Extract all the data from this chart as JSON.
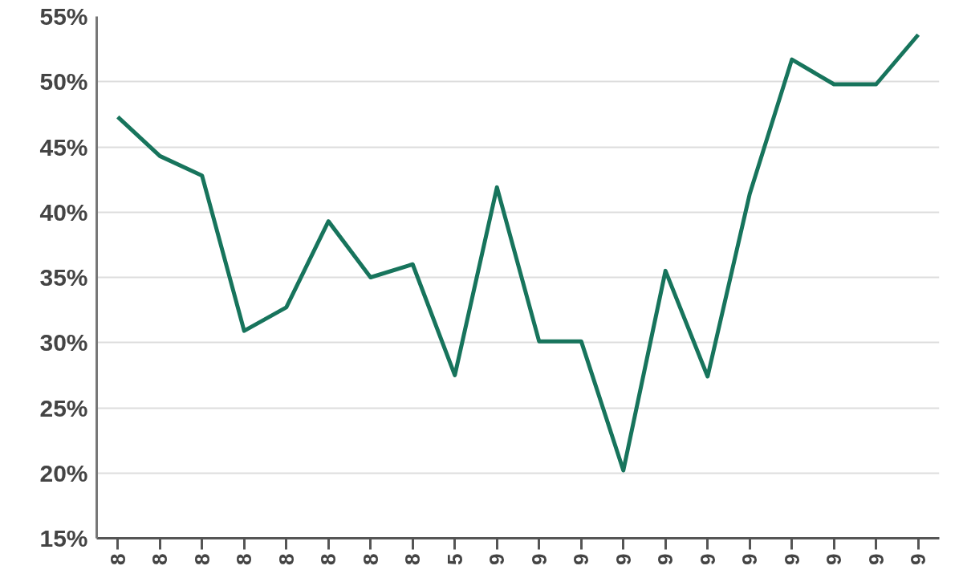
{
  "chart_data": {
    "type": "line",
    "categories": [
      "8",
      "8",
      "8",
      "8",
      "8",
      "8",
      "8",
      "8",
      "5",
      "9",
      "9",
      "9",
      "9",
      "9",
      "9",
      "9",
      "9",
      "9",
      "9",
      "9"
    ],
    "series": [
      {
        "color": "#17745c",
        "values": [
          47.3,
          44.3,
          42.8,
          30.9,
          32.7,
          39.3,
          35.0,
          36.0,
          27.5,
          41.9,
          30.1,
          30.1,
          20.2,
          35.5,
          27.4,
          41.4,
          51.7,
          49.8,
          49.8,
          53.6
        ]
      }
    ],
    "ylim": [
      15,
      55
    ],
    "yticks": [
      {
        "value": 15,
        "label": "15%"
      },
      {
        "value": 20,
        "label": "20%"
      },
      {
        "value": 25,
        "label": "25%"
      },
      {
        "value": 30,
        "label": "30%"
      },
      {
        "value": 35,
        "label": "35%"
      },
      {
        "value": 40,
        "label": "40%"
      },
      {
        "value": 45,
        "label": "45%"
      },
      {
        "value": 50,
        "label": "50%"
      },
      {
        "value": 55,
        "label": "55%"
      }
    ],
    "grid": "y",
    "marker": "none",
    "line_style": "solid"
  }
}
